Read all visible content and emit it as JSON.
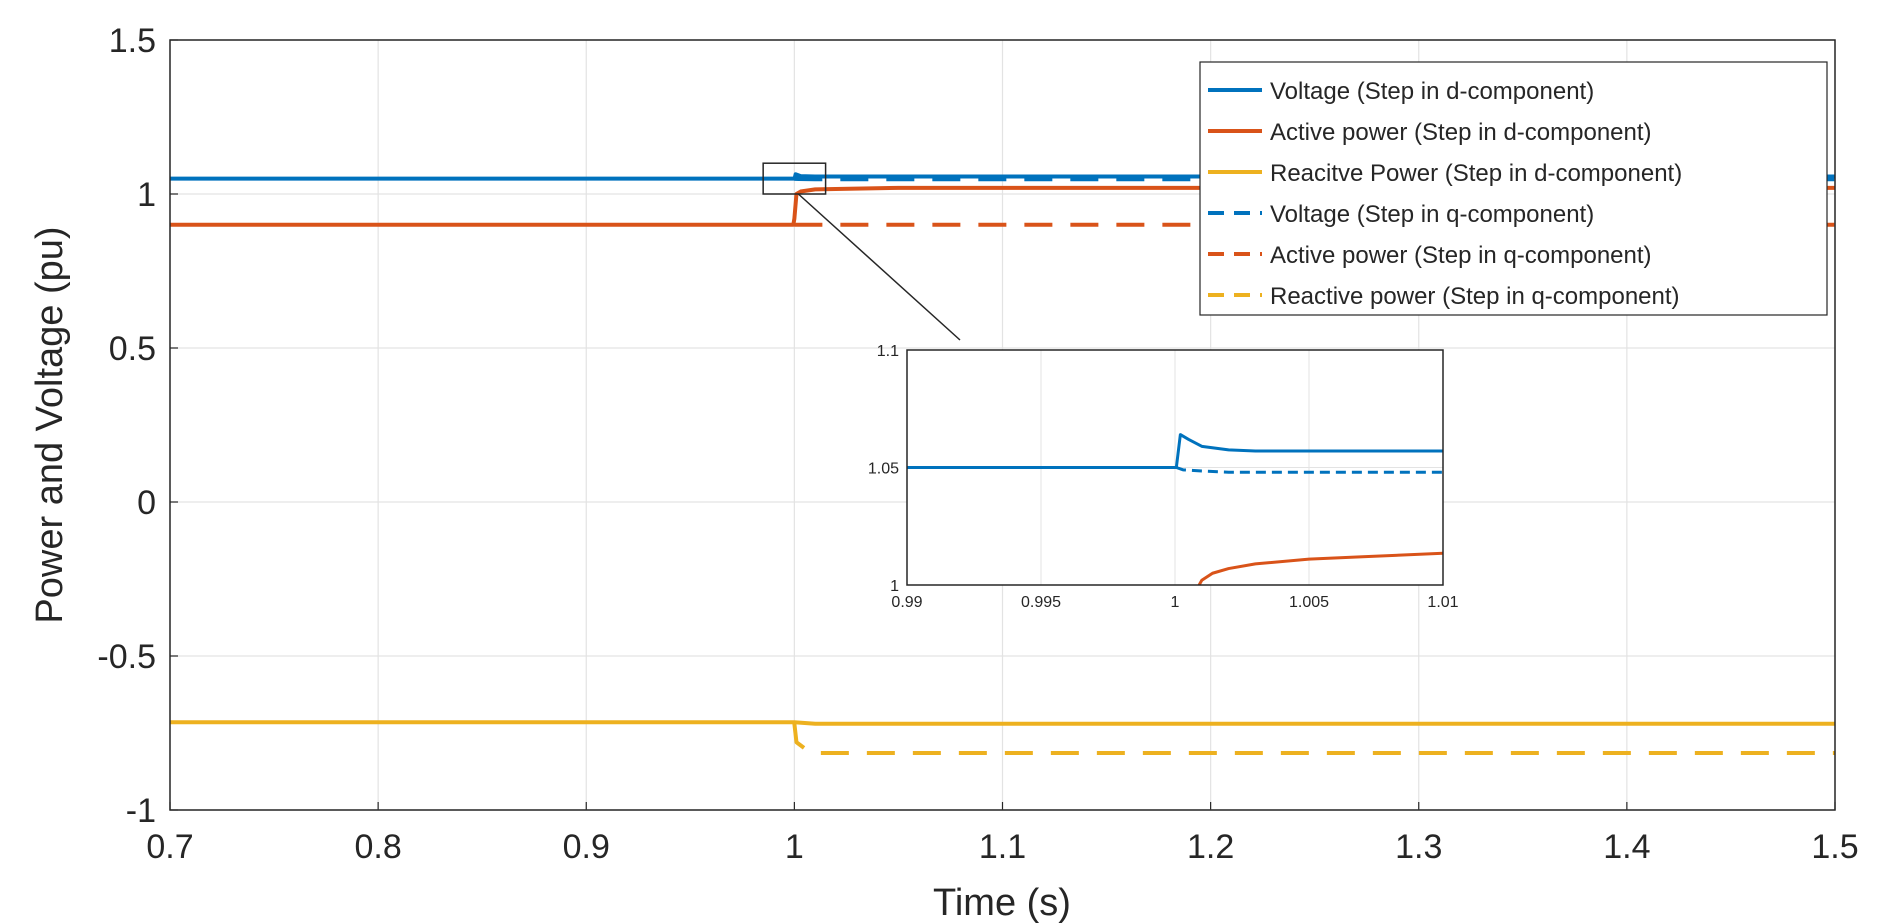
{
  "chart_data": [
    {
      "type": "line",
      "xlabel": "Time (s)",
      "ylabel": "Power and Voltage (pu)",
      "xlim": [
        0.7,
        1.5
      ],
      "ylim": [
        -1,
        1.5
      ],
      "xticks": [
        "0.7",
        "0.8",
        "0.9",
        "1",
        "1.1",
        "1.2",
        "1.3",
        "1.4",
        "1.5"
      ],
      "yticks": [
        "1.5",
        "1",
        "0.5",
        "0",
        "-0.5",
        "-1"
      ],
      "grid": true,
      "legend_position": "top-right",
      "series": [
        {
          "name": "Voltage (Step in d-component)",
          "color": "#0072BD",
          "style": "solid",
          "x": [
            0.7,
            0.9999,
            1.0001,
            1.0006,
            1.003,
            1.01,
            1.5
          ],
          "y": [
            1.05,
            1.05,
            1.05,
            1.064,
            1.058,
            1.057,
            1.057
          ]
        },
        {
          "name": "Active power (Step in d-component)",
          "color": "#D95319",
          "style": "solid",
          "x": [
            0.7,
            0.9995,
            1.0,
            1.001,
            1.003,
            1.01,
            1.05,
            1.5
          ],
          "y": [
            0.9,
            0.9,
            0.92,
            1.0,
            1.008,
            1.015,
            1.02,
            1.02
          ]
        },
        {
          "name": "Reacitve Power (Step in d-component)",
          "color": "#EDB120",
          "style": "solid",
          "x": [
            0.7,
            1.0,
            1.01,
            1.5
          ],
          "y": [
            -0.715,
            -0.715,
            -0.72,
            -0.72
          ]
        },
        {
          "name": "Voltage (Step in q-component)",
          "color": "#0072BD",
          "style": "dashed",
          "x": [
            1.0,
            1.0005,
            1.002,
            1.01,
            1.5
          ],
          "y": [
            1.05,
            1.049,
            1.0485,
            1.048,
            1.048
          ]
        },
        {
          "name": "Active power (Step in q-component)",
          "color": "#D95319",
          "style": "dashed",
          "x": [
            1.0,
            1.5
          ],
          "y": [
            0.9,
            0.9
          ]
        },
        {
          "name": "Reactive power (Step in q-component)",
          "color": "#EDB120",
          "style": "dashed",
          "x": [
            1.0,
            1.001,
            1.005,
            1.01,
            1.5
          ],
          "y": [
            -0.72,
            -0.78,
            -0.8,
            -0.815,
            -0.815
          ]
        }
      ]
    },
    {
      "type": "line",
      "role": "inset",
      "xlim": [
        0.99,
        1.01
      ],
      "ylim": [
        1,
        1.1
      ],
      "xticks": [
        "0.99",
        "0.995",
        "1",
        "1.005",
        "1.01"
      ],
      "yticks": [
        "1.1",
        "1.05",
        "1"
      ],
      "grid": true,
      "zoom_box": {
        "x": [
          0.985,
          1.015
        ],
        "y": [
          1.0,
          1.1
        ]
      },
      "series": [
        {
          "color": "#0072BD",
          "style": "solid",
          "x": [
            0.99,
            0.99995,
            1.00005,
            1.0002,
            1.0005,
            1.001,
            1.002,
            1.003,
            1.01
          ],
          "y": [
            1.05,
            1.05,
            1.05,
            1.064,
            1.062,
            1.059,
            1.0575,
            1.057,
            1.057
          ]
        },
        {
          "color": "#0072BD",
          "style": "dashed",
          "x": [
            1.00005,
            1.0003,
            1.001,
            1.002,
            1.01
          ],
          "y": [
            1.05,
            1.049,
            1.0485,
            1.048,
            1.048
          ]
        },
        {
          "color": "#D95319",
          "style": "solid",
          "x": [
            1.0009,
            1.001,
            1.0014,
            1.002,
            1.003,
            1.005,
            1.007,
            1.01
          ],
          "y": [
            1.0,
            1.002,
            1.005,
            1.007,
            1.009,
            1.011,
            1.012,
            1.0135
          ]
        }
      ]
    }
  ]
}
